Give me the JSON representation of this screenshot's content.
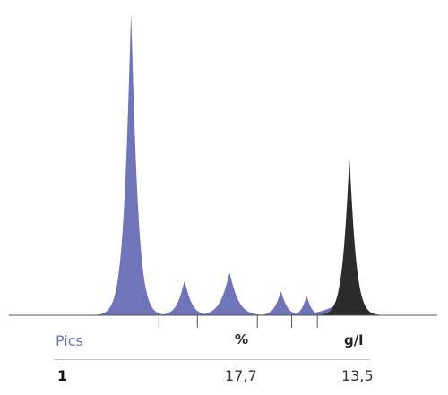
{
  "chart_data": {
    "type": "area",
    "title": "",
    "xlabel": "",
    "ylabel": "",
    "grid": false,
    "colors": {
      "peak": "#7074b8",
      "highlight": "#2b2b2b",
      "axis": "#555555"
    },
    "x_range": [
      0,
      100
    ],
    "y_range": [
      0,
      100
    ],
    "peaks": [
      {
        "center": 28.5,
        "height": 100,
        "width": 1.6,
        "color_key": "peak"
      },
      {
        "center": 41.0,
        "height": 11.5,
        "width": 1.6,
        "color_key": "peak"
      },
      {
        "center": 51.5,
        "height": 14.0,
        "width": 2.0,
        "color_key": "peak"
      },
      {
        "center": 63.5,
        "height": 8.0,
        "width": 1.4,
        "color_key": "peak"
      },
      {
        "center": 69.5,
        "height": 6.5,
        "width": 1.1,
        "color_key": "peak"
      },
      {
        "center": 76.5,
        "height": 3.5,
        "width": 3.8,
        "color_key": "peak"
      },
      {
        "center": 79.5,
        "height": 52.0,
        "width": 1.5,
        "color_key": "highlight"
      }
    ],
    "separators": [
      35.0,
      44.0,
      58.0,
      66.0,
      72.0
    ],
    "table": {
      "headers": [
        "Pics",
        "%",
        "g/l"
      ],
      "rows": [
        [
          "1",
          "17,7",
          "13,5"
        ]
      ]
    }
  },
  "table": {
    "headers": {
      "pics": "Pics",
      "percent": "%",
      "gl": "g/l"
    },
    "row": {
      "id": "1",
      "percent": "17,7",
      "gl": "13,5"
    }
  }
}
